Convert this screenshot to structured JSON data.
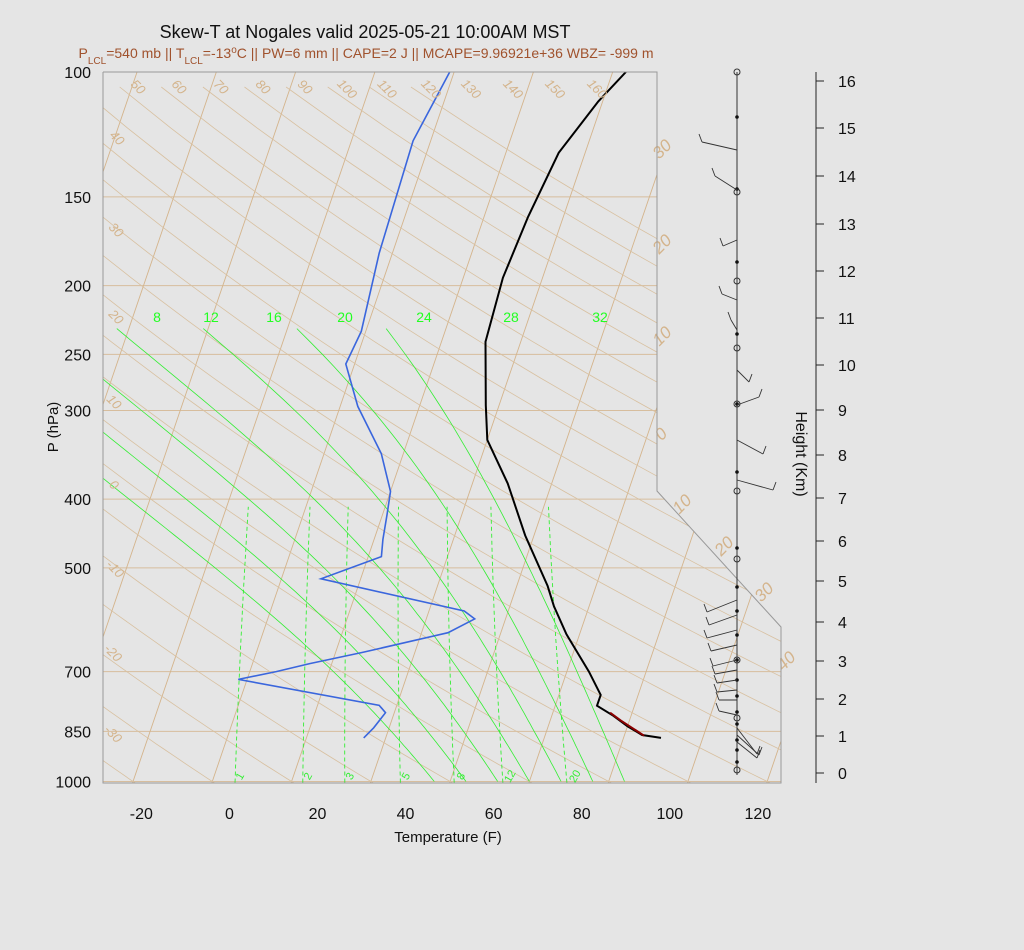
{
  "chart_data": {
    "type": "line",
    "title": "Skew-T at Nogales valid 2025-05-21 10:00AM MST",
    "subtitle": {
      "lcl_pressure": "P<sub>LCL</sub>=540 mb",
      "lcl_temp": "T<sub>LCL</sub>=-13<sup>o</sup>C",
      "pw": "PW=6 mm",
      "cape": "CAPE=2 J",
      "mcape": "MCAPE=9.96921e+36",
      "wbz": "WBZ= -999 m"
    },
    "subtitle_sep": " || ",
    "xlabel": "Temperature (F)",
    "ylabel": "P (hPa)",
    "y2label": "Height (Km)",
    "xlim": [
      -29,
      125
    ],
    "ylim": [
      1050,
      100
    ],
    "x_ticks": [
      "-20",
      "0",
      "20",
      "40",
      "60",
      "80",
      "100",
      "120"
    ],
    "p_ticks": [
      "100",
      "150",
      "200",
      "250",
      "300",
      "400",
      "500",
      "700",
      "850",
      "1000"
    ],
    "height_ticks": [
      "0",
      "1",
      "2",
      "3",
      "4",
      "5",
      "6",
      "7",
      "8",
      "9",
      "10",
      "11",
      "12",
      "13",
      "14",
      "15",
      "16"
    ],
    "isotherm_labels": [
      "-30",
      "-20",
      "-10",
      "0",
      "10",
      "20",
      "30",
      "40"
    ],
    "isotherm_labels_right": [
      "30",
      "20",
      "10",
      "0",
      "10",
      "20",
      "30",
      "40"
    ],
    "dry_adiabat_labels": [
      "50",
      "60",
      "70",
      "80",
      "90",
      "100",
      "110",
      "120",
      "130",
      "140",
      "150",
      "160"
    ],
    "left_theta_labels": [
      "40",
      "30",
      "20",
      "10",
      "0",
      "-10",
      "-20",
      "-30"
    ],
    "moist_adiabat_labels": [
      "8",
      "12",
      "16",
      "20",
      "24",
      "28",
      "32"
    ],
    "mixing_ratio_labels": [
      "1",
      "2",
      "3",
      "5",
      "8",
      "12",
      "20"
    ],
    "series": [
      {
        "name": "Temperature",
        "color": "#000000",
        "points": [
          [
            94.5,
            868
          ],
          [
            90,
            860
          ],
          [
            86,
            836
          ],
          [
            82,
            808
          ],
          [
            77.5,
            782
          ],
          [
            77.5,
            755
          ],
          [
            73,
            700
          ],
          [
            65,
            620
          ],
          [
            60,
            566
          ],
          [
            57,
            530
          ],
          [
            48,
            450
          ],
          [
            40,
            380
          ],
          [
            32,
            330
          ],
          [
            29,
            295
          ],
          [
            24,
            240
          ],
          [
            23,
            195
          ],
          [
            24,
            160
          ],
          [
            26,
            130
          ],
          [
            31,
            110
          ],
          [
            35,
            100
          ]
        ]
      },
      {
        "name": "Parcel",
        "color": "#8b0000",
        "points": [
          [
            90.5,
            862
          ],
          [
            84,
            820
          ],
          [
            81,
            800
          ]
        ]
      },
      {
        "name": "Dewpoint",
        "color": "#3a66dd",
        "points": [
          [
            27,
            868
          ],
          [
            28.5,
            840
          ],
          [
            30,
            800
          ],
          [
            28,
            781
          ],
          [
            -6,
            718
          ],
          [
            2,
            700
          ],
          [
            9,
            682
          ],
          [
            20,
            658
          ],
          [
            38,
            617
          ],
          [
            43,
            590
          ],
          [
            40,
            575
          ],
          [
            5,
            518
          ],
          [
            17,
            482
          ],
          [
            16,
            456
          ],
          [
            15,
            420
          ],
          [
            14,
            390
          ],
          [
            9,
            345
          ],
          [
            0,
            296
          ],
          [
            -6,
            258
          ],
          [
            -5,
            232
          ],
          [
            -7,
            180
          ],
          [
            -8,
            125
          ],
          [
            -5,
            100
          ]
        ]
      }
    ]
  },
  "colors": {
    "isotherm": "#d4b48c",
    "dry_adiabat": "#d8c0a0",
    "moist": "#33ee33",
    "dew": "#3a66dd",
    "temp": "#000000",
    "parcel": "#8b0000",
    "bg": "#e5e5e5"
  }
}
